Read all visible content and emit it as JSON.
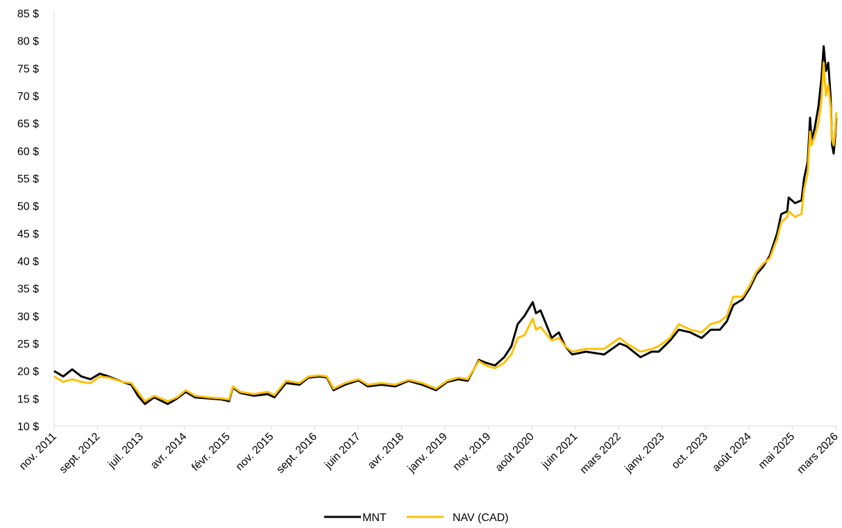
{
  "chart_data": {
    "type": "line",
    "title": "",
    "xlabel": "",
    "ylabel": "",
    "ylim": [
      10,
      85
    ],
    "y_ticks": [
      "10 $",
      "15 $",
      "20 $",
      "25 $",
      "30 $",
      "35 $",
      "40 $",
      "45 $",
      "50 $",
      "55 $",
      "60 $",
      "65 $",
      "70 $",
      "75 $",
      "80 $",
      "85 $"
    ],
    "x_ticks": [
      "nov. 2011",
      "sept. 2012",
      "juil. 2013",
      "avr. 2014",
      "févr. 2015",
      "nov. 2015",
      "sept. 2016",
      "juin 2017",
      "avr. 2018",
      "janv. 2019",
      "nov. 2019",
      "août 2020",
      "juin 2021",
      "mars 2022",
      "janv. 2023",
      "oct. 2023",
      "août 2024",
      "mai 2025",
      "mars 2026"
    ],
    "grid": false,
    "legend_position": "bottom",
    "series": [
      {
        "name": "MNT",
        "color": "#000000",
        "points": [
          [
            "2011-11-01",
            20.0
          ],
          [
            "2012-01-01",
            19.0
          ],
          [
            "2012-03-01",
            20.3
          ],
          [
            "2012-05-01",
            19.0
          ],
          [
            "2012-07-01",
            18.5
          ],
          [
            "2012-09-01",
            19.5
          ],
          [
            "2012-11-01",
            19.0
          ],
          [
            "2013-02-01",
            18.0
          ],
          [
            "2013-04-01",
            17.5
          ],
          [
            "2013-05-15",
            15.5
          ],
          [
            "2013-07-01",
            14.0
          ],
          [
            "2013-09-01",
            15.2
          ],
          [
            "2013-12-01",
            14.0
          ],
          [
            "2014-02-01",
            15.0
          ],
          [
            "2014-04-01",
            16.2
          ],
          [
            "2014-06-01",
            15.2
          ],
          [
            "2014-09-01",
            15.0
          ],
          [
            "2014-12-01",
            14.8
          ],
          [
            "2015-01-15",
            14.5
          ],
          [
            "2015-02-10",
            17.0
          ],
          [
            "2015-04-01",
            16.0
          ],
          [
            "2015-07-01",
            15.5
          ],
          [
            "2015-10-01",
            15.8
          ],
          [
            "2015-11-15",
            15.2
          ],
          [
            "2016-02-01",
            17.8
          ],
          [
            "2016-05-01",
            17.5
          ],
          [
            "2016-07-01",
            18.8
          ],
          [
            "2016-09-15",
            19.0
          ],
          [
            "2016-11-01",
            18.8
          ],
          [
            "2016-12-15",
            16.5
          ],
          [
            "2017-03-01",
            17.5
          ],
          [
            "2017-06-01",
            18.3
          ],
          [
            "2017-08-01",
            17.2
          ],
          [
            "2017-11-01",
            17.5
          ],
          [
            "2018-02-01",
            17.2
          ],
          [
            "2018-05-01",
            18.2
          ],
          [
            "2018-08-01",
            17.5
          ],
          [
            "2018-11-01",
            16.5
          ],
          [
            "2019-01-15",
            18.0
          ],
          [
            "2019-04-01",
            18.5
          ],
          [
            "2019-06-01",
            18.2
          ],
          [
            "2019-08-15",
            22.0
          ],
          [
            "2019-10-01",
            21.5
          ],
          [
            "2019-12-01",
            21.0
          ],
          [
            "2020-02-01",
            22.5
          ],
          [
            "2020-03-20",
            24.5
          ],
          [
            "2020-05-01",
            28.5
          ],
          [
            "2020-06-15",
            30.0
          ],
          [
            "2020-08-10",
            32.5
          ],
          [
            "2020-09-01",
            30.5
          ],
          [
            "2020-10-01",
            31.0
          ],
          [
            "2020-11-15",
            28.0
          ],
          [
            "2020-12-15",
            26.0
          ],
          [
            "2021-02-01",
            27.0
          ],
          [
            "2021-03-15",
            24.5
          ],
          [
            "2021-05-01",
            23.0
          ],
          [
            "2021-08-01",
            23.5
          ],
          [
            "2021-12-01",
            23.0
          ],
          [
            "2022-03-15",
            25.0
          ],
          [
            "2022-05-01",
            24.5
          ],
          [
            "2022-08-01",
            22.5
          ],
          [
            "2022-10-15",
            23.5
          ],
          [
            "2022-12-01",
            23.5
          ],
          [
            "2023-02-15",
            25.5
          ],
          [
            "2023-04-15",
            27.5
          ],
          [
            "2023-07-01",
            27.0
          ],
          [
            "2023-09-15",
            26.0
          ],
          [
            "2023-11-15",
            27.5
          ],
          [
            "2024-01-15",
            27.5
          ],
          [
            "2024-03-01",
            29.0
          ],
          [
            "2024-04-15",
            32.0
          ],
          [
            "2024-06-15",
            33.0
          ],
          [
            "2024-08-01",
            35.0
          ],
          [
            "2024-09-15",
            37.5
          ],
          [
            "2024-11-01",
            39.0
          ],
          [
            "2024-12-15",
            41.0
          ],
          [
            "2025-02-01",
            45.0
          ],
          [
            "2025-03-01",
            48.5
          ],
          [
            "2025-04-10",
            49.0
          ],
          [
            "2025-04-20",
            51.5
          ],
          [
            "2025-06-01",
            50.5
          ],
          [
            "2025-07-15",
            51.0
          ],
          [
            "2025-08-01",
            55.0
          ],
          [
            "2025-08-25",
            58.0
          ],
          [
            "2025-09-10",
            66.0
          ],
          [
            "2025-09-20",
            62.0
          ],
          [
            "2025-10-10",
            64.0
          ],
          [
            "2025-11-05",
            68.0
          ],
          [
            "2025-11-25",
            73.0
          ],
          [
            "2025-12-10",
            79.0
          ],
          [
            "2025-12-25",
            74.5
          ],
          [
            "2026-01-10",
            76.0
          ],
          [
            "2026-01-25",
            70.0
          ],
          [
            "2026-02-05",
            61.0
          ],
          [
            "2026-02-15",
            59.5
          ],
          [
            "2026-02-25",
            62.5
          ],
          [
            "2026-03-05",
            66.0
          ]
        ]
      },
      {
        "name": "NAV (CAD)",
        "color": "#FFC000",
        "points": [
          [
            "2011-11-01",
            19.0
          ],
          [
            "2012-01-01",
            18.0
          ],
          [
            "2012-03-01",
            18.5
          ],
          [
            "2012-05-01",
            18.0
          ],
          [
            "2012-07-01",
            17.8
          ],
          [
            "2012-09-01",
            19.0
          ],
          [
            "2012-11-01",
            18.8
          ],
          [
            "2013-02-01",
            18.0
          ],
          [
            "2013-04-01",
            17.8
          ],
          [
            "2013-05-15",
            16.2
          ],
          [
            "2013-07-01",
            14.5
          ],
          [
            "2013-09-01",
            15.5
          ],
          [
            "2013-12-01",
            14.5
          ],
          [
            "2014-02-01",
            15.2
          ],
          [
            "2014-04-01",
            16.5
          ],
          [
            "2014-06-01",
            15.5
          ],
          [
            "2014-09-01",
            15.2
          ],
          [
            "2014-12-01",
            15.0
          ],
          [
            "2015-01-15",
            14.8
          ],
          [
            "2015-02-10",
            17.2
          ],
          [
            "2015-04-01",
            16.2
          ],
          [
            "2015-07-01",
            15.8
          ],
          [
            "2015-10-01",
            16.2
          ],
          [
            "2015-11-15",
            15.6
          ],
          [
            "2016-02-01",
            18.2
          ],
          [
            "2016-05-01",
            17.8
          ],
          [
            "2016-07-01",
            19.0
          ],
          [
            "2016-09-15",
            19.2
          ],
          [
            "2016-11-01",
            19.0
          ],
          [
            "2016-12-15",
            16.8
          ],
          [
            "2017-03-01",
            17.8
          ],
          [
            "2017-06-01",
            18.5
          ],
          [
            "2017-08-01",
            17.5
          ],
          [
            "2017-11-01",
            17.8
          ],
          [
            "2018-02-01",
            17.5
          ],
          [
            "2018-05-01",
            18.4
          ],
          [
            "2018-08-01",
            17.8
          ],
          [
            "2018-11-01",
            16.8
          ],
          [
            "2019-01-15",
            18.2
          ],
          [
            "2019-04-01",
            18.8
          ],
          [
            "2019-06-01",
            18.5
          ],
          [
            "2019-08-15",
            21.8
          ],
          [
            "2019-10-01",
            21.0
          ],
          [
            "2019-12-01",
            20.5
          ],
          [
            "2020-02-01",
            21.5
          ],
          [
            "2020-03-20",
            23.0
          ],
          [
            "2020-05-01",
            26.0
          ],
          [
            "2020-06-15",
            26.5
          ],
          [
            "2020-08-10",
            29.5
          ],
          [
            "2020-09-01",
            27.5
          ],
          [
            "2020-10-01",
            28.0
          ],
          [
            "2020-11-15",
            26.5
          ],
          [
            "2020-12-15",
            25.5
          ],
          [
            "2021-02-01",
            26.0
          ],
          [
            "2021-03-15",
            24.5
          ],
          [
            "2021-05-01",
            23.5
          ],
          [
            "2021-08-01",
            24.0
          ],
          [
            "2021-12-01",
            24.0
          ],
          [
            "2022-03-15",
            26.0
          ],
          [
            "2022-05-01",
            25.0
          ],
          [
            "2022-08-01",
            23.5
          ],
          [
            "2022-10-15",
            24.0
          ],
          [
            "2022-12-01",
            24.5
          ],
          [
            "2023-02-15",
            26.0
          ],
          [
            "2023-04-15",
            28.5
          ],
          [
            "2023-07-01",
            27.5
          ],
          [
            "2023-09-15",
            27.0
          ],
          [
            "2023-11-15",
            28.5
          ],
          [
            "2024-01-15",
            29.0
          ],
          [
            "2024-03-01",
            30.0
          ],
          [
            "2024-04-15",
            33.5
          ],
          [
            "2024-06-15",
            33.5
          ],
          [
            "2024-08-01",
            35.5
          ],
          [
            "2024-09-15",
            38.0
          ],
          [
            "2024-11-01",
            39.5
          ],
          [
            "2024-12-15",
            40.5
          ],
          [
            "2025-02-01",
            44.0
          ],
          [
            "2025-03-01",
            47.0
          ],
          [
            "2025-04-10",
            48.0
          ],
          [
            "2025-04-20",
            49.0
          ],
          [
            "2025-06-01",
            48.0
          ],
          [
            "2025-07-15",
            48.5
          ],
          [
            "2025-08-01",
            53.0
          ],
          [
            "2025-08-25",
            56.0
          ],
          [
            "2025-09-10",
            63.5
          ],
          [
            "2025-09-20",
            61.0
          ],
          [
            "2025-10-10",
            62.5
          ],
          [
            "2025-11-05",
            65.0
          ],
          [
            "2025-11-25",
            69.0
          ],
          [
            "2025-12-10",
            76.0
          ],
          [
            "2025-12-25",
            70.0
          ],
          [
            "2026-01-10",
            72.0
          ],
          [
            "2026-01-25",
            68.0
          ],
          [
            "2026-02-05",
            62.0
          ],
          [
            "2026-02-15",
            61.0
          ],
          [
            "2026-02-25",
            63.5
          ],
          [
            "2026-03-05",
            67.0
          ]
        ]
      }
    ]
  }
}
